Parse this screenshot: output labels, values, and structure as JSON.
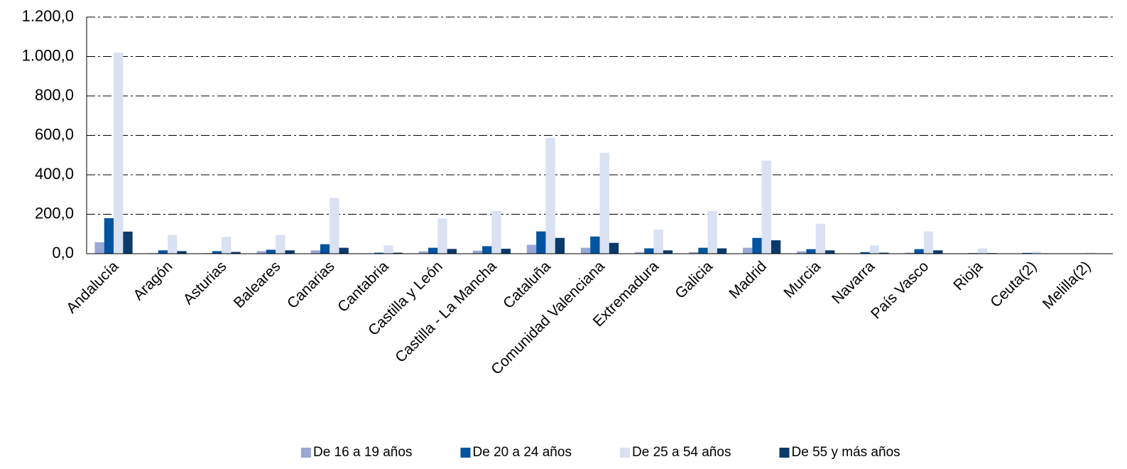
{
  "chart_data": {
    "type": "bar",
    "categories": [
      "Andalucía",
      "Aragón",
      "Asturias",
      "Baleares",
      "Canarias",
      "Cantabria",
      "Castilla y León",
      "Castilla - La Mancha",
      "Cataluña",
      "Comunidad Valenciana",
      "Extremadura",
      "Galicia",
      "Madrid",
      "Murcia",
      "Navarra",
      "País Vasco",
      "Rioja",
      "Ceuta(2)",
      "Melilla(2)"
    ],
    "series": [
      {
        "name": "De 16 a 19 años",
        "color": "#9ba7d4",
        "values": [
          58,
          3,
          3,
          13,
          17,
          2,
          12,
          15,
          45,
          30,
          8,
          8,
          30,
          12,
          2,
          5,
          2,
          1,
          1
        ]
      },
      {
        "name": "De 20 a 24 años",
        "color": "#0054a0",
        "values": [
          180,
          17,
          13,
          20,
          48,
          5,
          30,
          38,
          113,
          87,
          27,
          30,
          80,
          23,
          8,
          23,
          3,
          4,
          2
        ]
      },
      {
        "name": "De 25 a 54 años",
        "color": "#d9e1f2",
        "values": [
          1020,
          95,
          85,
          95,
          283,
          42,
          178,
          217,
          587,
          512,
          122,
          217,
          472,
          152,
          42,
          113,
          27,
          10,
          6
        ]
      },
      {
        "name": "De 55 y más años",
        "color": "#0b3a6d",
        "values": [
          112,
          13,
          9,
          17,
          30,
          5,
          24,
          25,
          80,
          55,
          17,
          27,
          68,
          17,
          5,
          17,
          3,
          2,
          1
        ]
      }
    ],
    "ylim": [
      0,
      1200
    ],
    "yticks": [
      {
        "value": 0,
        "label": "0,0"
      },
      {
        "value": 200,
        "label": "200,0"
      },
      {
        "value": 400,
        "label": "400,0"
      },
      {
        "value": 600,
        "label": "600,0"
      },
      {
        "value": 800,
        "label": "800,0"
      },
      {
        "value": 1000,
        "label": "1.000,0"
      },
      {
        "value": 1200,
        "label": "1.200,0"
      }
    ],
    "grid": true,
    "legend": "bottom"
  }
}
